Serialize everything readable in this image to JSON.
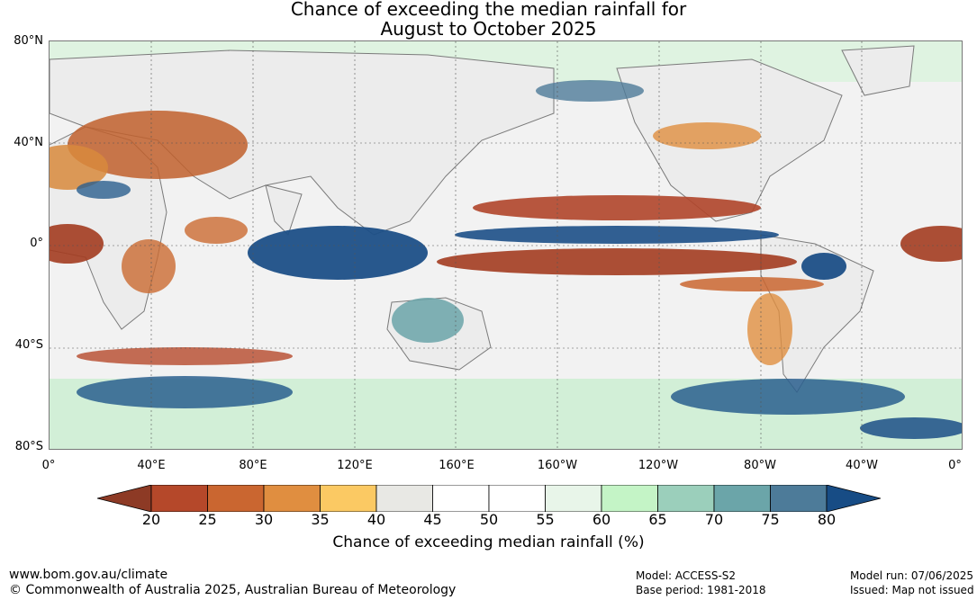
{
  "title_line1": "Chance of exceeding the median rainfall for",
  "title_line2": "August to October 2025",
  "map": {
    "lat_labels": [
      "80°N",
      "40°N",
      "0°",
      "40°S",
      "80°S"
    ],
    "lon_labels": [
      "0°",
      "40°E",
      "80°E",
      "120°E",
      "160°E",
      "160°W",
      "120°W",
      "80°W",
      "40°W",
      "0°"
    ],
    "ocean_color": "#f4f4f4",
    "coastline_color": "#7a7a7a"
  },
  "colorbar": {
    "ticks": [
      "20",
      "25",
      "30",
      "35",
      "40",
      "45",
      "50",
      "55",
      "60",
      "65",
      "70",
      "75",
      "80"
    ],
    "colors": [
      "#a23a1f",
      "#b5482a",
      "#ca6630",
      "#e08e40",
      "#fbc963",
      "#e8e8e4",
      "#ffffff",
      "#ffffff",
      "#e8f5e9",
      "#c4f4c6",
      "#9bcfbb",
      "#6ba5a9",
      "#4d7b99",
      "#1c4f87"
    ],
    "low_color": "#8d3a25",
    "high_color": "#174c85",
    "label": "Chance of exceeding median rainfall (%)"
  },
  "footer": {
    "url": "www.bom.gov.au/climate",
    "copyright": "© Commonwealth of Australia 2025, Australian Bureau of Meteorology",
    "model": "Model: ACCESS-S2",
    "base_period": "Base period: 1981-2018",
    "model_run": "Model run: 07/06/2025",
    "issued": "Issued: Map not issued"
  }
}
